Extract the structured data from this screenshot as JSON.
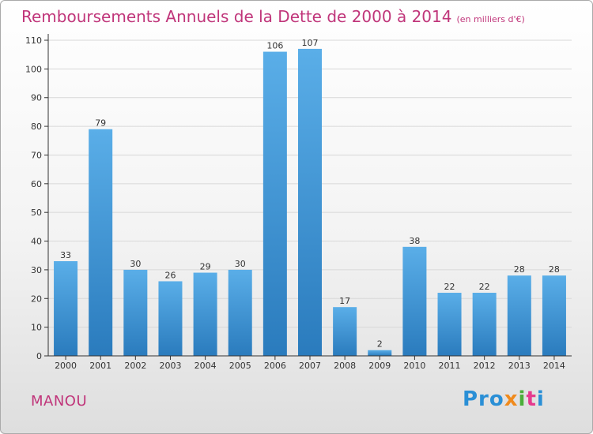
{
  "title": "Remboursements Annuels de la Dette de 2000 à 2014",
  "title_unit": "(en milliers d'€)",
  "commune": "MANOU",
  "logo": {
    "p1": "Pro",
    "p2": "x",
    "p3": "i",
    "p4": "t",
    "p5": "i"
  },
  "colors": {
    "title": "#c0357a",
    "bar_top": "#5aaee8",
    "bar_bottom": "#2a7bbd",
    "axis": "#333333",
    "grid": "#d8d8d8"
  },
  "chart_data": {
    "type": "bar",
    "title": "Remboursements Annuels de la Dette de 2000 à 2014",
    "ylabel": "",
    "xlabel": "",
    "ylim": [
      0,
      110
    ],
    "yticks": [
      0,
      10,
      20,
      30,
      40,
      50,
      60,
      70,
      80,
      90,
      100,
      110
    ],
    "grid": true,
    "categories": [
      "2000",
      "2001",
      "2002",
      "2003",
      "2004",
      "2005",
      "2006",
      "2007",
      "2008",
      "2009",
      "2010",
      "2011",
      "2012",
      "2013",
      "2014"
    ],
    "values": [
      33,
      79,
      30,
      26,
      29,
      30,
      106,
      107,
      17,
      2,
      38,
      22,
      22,
      28,
      28
    ]
  }
}
